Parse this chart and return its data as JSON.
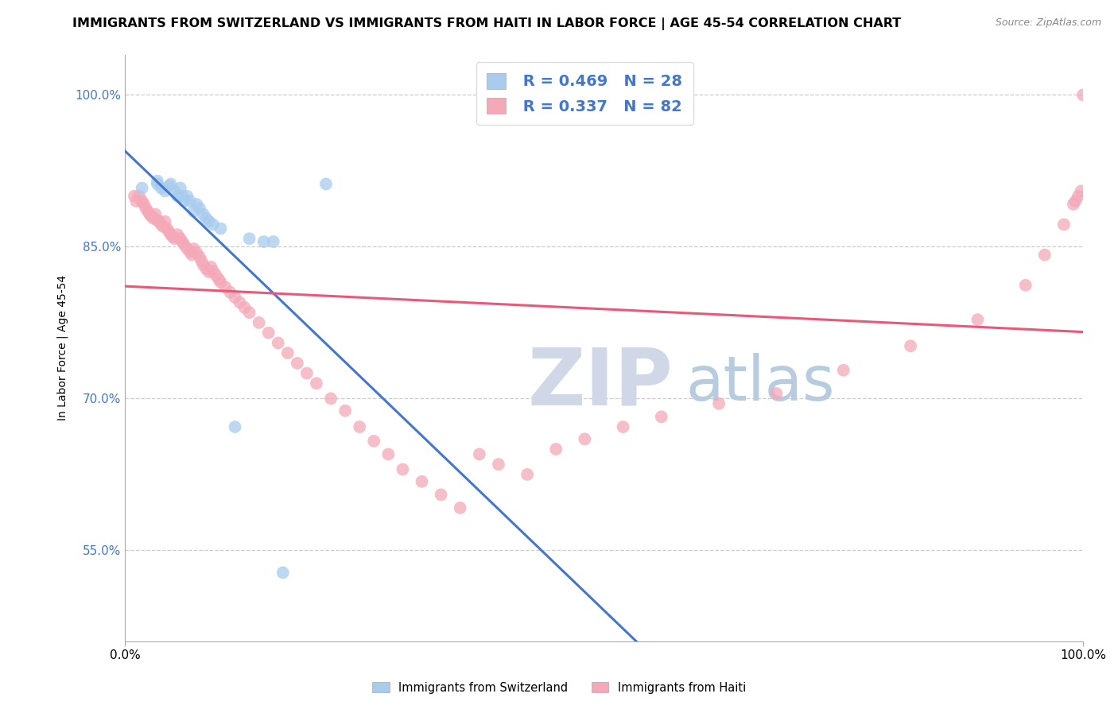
{
  "title": "IMMIGRANTS FROM SWITZERLAND VS IMMIGRANTS FROM HAITI IN LABOR FORCE | AGE 45-54 CORRELATION CHART",
  "source": "Source: ZipAtlas.com",
  "ylabel": "In Labor Force | Age 45-54",
  "ytick_labels": [
    "55.0%",
    "70.0%",
    "85.0%",
    "100.0%"
  ],
  "ytick_values": [
    0.55,
    0.7,
    0.85,
    1.0
  ],
  "xlim": [
    0.0,
    1.0
  ],
  "ylim": [
    0.46,
    1.04
  ],
  "r_switzerland": 0.469,
  "n_switzerland": 28,
  "r_haiti": 0.337,
  "n_haiti": 82,
  "color_switzerland": "#A8CCEE",
  "color_haiti": "#F4A8B8",
  "trendline_switzerland": "#4477CC",
  "trendline_haiti": "#EE5577",
  "legend_border_color": "#DDDDDD",
  "grid_color": "#CCCCCC",
  "title_fontsize": 11.5,
  "source_fontsize": 9,
  "axis_label_fontsize": 10,
  "tick_fontsize": 11,
  "legend_fontsize": 14,
  "tick_color": "#4477CC",
  "legend_label_sw": "Immigrants from Switzerland",
  "legend_label_haiti": "Immigrants from Haiti",
  "sw_x": [
    0.018,
    0.034,
    0.034,
    0.038,
    0.042,
    0.046,
    0.048,
    0.052,
    0.055,
    0.058,
    0.06,
    0.062,
    0.065,
    0.068,
    0.072,
    0.075,
    0.078,
    0.082,
    0.085,
    0.088,
    0.092,
    0.1,
    0.115,
    0.13,
    0.145,
    0.155,
    0.165,
    0.21
  ],
  "sw_y": [
    0.908,
    0.915,
    0.912,
    0.908,
    0.905,
    0.91,
    0.912,
    0.905,
    0.9,
    0.908,
    0.9,
    0.895,
    0.9,
    0.895,
    0.885,
    0.892,
    0.888,
    0.882,
    0.878,
    0.875,
    0.872,
    0.868,
    0.672,
    0.858,
    0.855,
    0.855,
    0.528,
    0.912
  ],
  "haiti_x": [
    0.01,
    0.012,
    0.015,
    0.018,
    0.02,
    0.022,
    0.024,
    0.026,
    0.028,
    0.03,
    0.032,
    0.034,
    0.036,
    0.038,
    0.04,
    0.042,
    0.044,
    0.046,
    0.048,
    0.05,
    0.052,
    0.055,
    0.058,
    0.06,
    0.062,
    0.065,
    0.068,
    0.07,
    0.072,
    0.075,
    0.078,
    0.08,
    0.082,
    0.085,
    0.088,
    0.09,
    0.092,
    0.095,
    0.098,
    0.1,
    0.105,
    0.11,
    0.115,
    0.12,
    0.125,
    0.13,
    0.14,
    0.15,
    0.16,
    0.17,
    0.18,
    0.19,
    0.2,
    0.215,
    0.23,
    0.245,
    0.26,
    0.275,
    0.29,
    0.31,
    0.33,
    0.35,
    0.37,
    0.39,
    0.42,
    0.45,
    0.48,
    0.52,
    0.56,
    0.62,
    0.68,
    0.75,
    0.82,
    0.89,
    0.94,
    0.96,
    0.98,
    0.99,
    0.992,
    0.995,
    0.998,
    1.0
  ],
  "haiti_y": [
    0.9,
    0.895,
    0.9,
    0.895,
    0.892,
    0.888,
    0.885,
    0.882,
    0.88,
    0.878,
    0.882,
    0.876,
    0.875,
    0.872,
    0.87,
    0.875,
    0.868,
    0.865,
    0.862,
    0.86,
    0.858,
    0.862,
    0.858,
    0.855,
    0.852,
    0.848,
    0.845,
    0.842,
    0.848,
    0.844,
    0.84,
    0.836,
    0.832,
    0.828,
    0.825,
    0.83,
    0.826,
    0.822,
    0.818,
    0.815,
    0.81,
    0.805,
    0.8,
    0.795,
    0.79,
    0.785,
    0.775,
    0.765,
    0.755,
    0.745,
    0.735,
    0.725,
    0.715,
    0.7,
    0.688,
    0.672,
    0.658,
    0.645,
    0.63,
    0.618,
    0.605,
    0.592,
    0.645,
    0.635,
    0.625,
    0.65,
    0.66,
    0.672,
    0.682,
    0.695,
    0.705,
    0.728,
    0.752,
    0.778,
    0.812,
    0.842,
    0.872,
    0.892,
    0.895,
    0.9,
    0.905,
    1.0
  ]
}
